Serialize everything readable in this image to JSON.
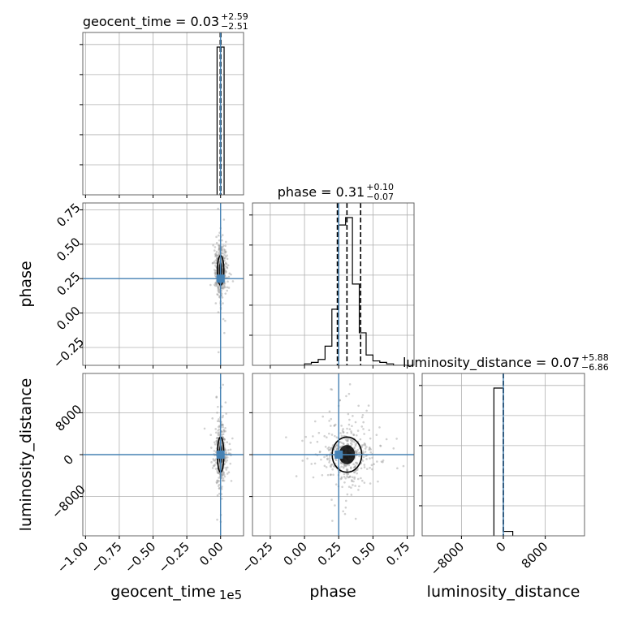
{
  "chart_data": {
    "type": "corner",
    "parameters": [
      "geocent_time",
      "phase",
      "luminosity_distance"
    ],
    "axis_labels": [
      "geocent_time",
      "phase",
      "luminosity_distance"
    ],
    "axis_offset_text": {
      "geocent_time": "1e5"
    },
    "ranges": {
      "geocent_time": [
        -102000,
        17000
      ],
      "phase": [
        -0.38,
        0.8
      ],
      "luminosity_distance": [
        -15500,
        15500
      ]
    },
    "ticks": {
      "geocent_time": {
        "values": [
          -100000,
          -75000,
          -50000,
          -25000,
          0
        ],
        "labels": [
          "−1.00",
          "−0.75",
          "−0.50",
          "−0.25",
          "0.00"
        ]
      },
      "phase": {
        "values": [
          -0.25,
          0.0,
          0.25,
          0.5,
          0.75
        ],
        "labels": [
          "−0.25",
          "0.00",
          "0.25",
          "0.50",
          "0.75"
        ]
      },
      "luminosity_distance": {
        "values": [
          -8000,
          0,
          8000
        ],
        "labels": [
          "−8000",
          "0",
          "8000"
        ]
      }
    },
    "truths": {
      "geocent_time": 0,
      "phase": 0.25,
      "luminosity_distance": 0
    },
    "truth_color": "#4682b4",
    "grid": true,
    "titles": [
      {
        "param": "geocent_time",
        "text": "geocent_time = 0.03",
        "sup": "+2.59",
        "sub": "−2.51",
        "quantiles": [
          -251,
          3,
          262
        ]
      },
      {
        "param": "phase",
        "text": "phase = 0.31",
        "sup": "+0.10",
        "sub": "−0.07",
        "quantiles": [
          0.24,
          0.31,
          0.41
        ]
      },
      {
        "param": "luminosity_distance",
        "text": "luminosity_distance = 0.07",
        "sup": "+5.88",
        "sub": "−6.86",
        "quantiles": [
          -6.79,
          0.07,
          5.95
        ]
      }
    ],
    "histograms": {
      "geocent_time": {
        "edges": [
          -2600,
          0,
          2600
        ],
        "counts": [
          1.0,
          1.0
        ]
      },
      "phase": {
        "edges": [
          -0.25,
          -0.2,
          -0.15,
          -0.1,
          -0.05,
          0.0,
          0.05,
          0.1,
          0.15,
          0.2,
          0.25,
          0.3,
          0.35,
          0.4,
          0.45,
          0.5,
          0.55,
          0.6,
          0.65,
          0.7,
          0.75
        ],
        "counts": [
          0.0,
          0.0,
          0.0,
          0.0,
          0.0,
          0.01,
          0.02,
          0.04,
          0.13,
          0.38,
          0.95,
          1.0,
          0.55,
          0.22,
          0.07,
          0.03,
          0.02,
          0.01,
          0.0,
          0.0
        ]
      },
      "luminosity_distance": {
        "edges": [
          -1800,
          0,
          1800
        ],
        "counts": [
          1.0,
          0.03
        ]
      }
    }
  }
}
